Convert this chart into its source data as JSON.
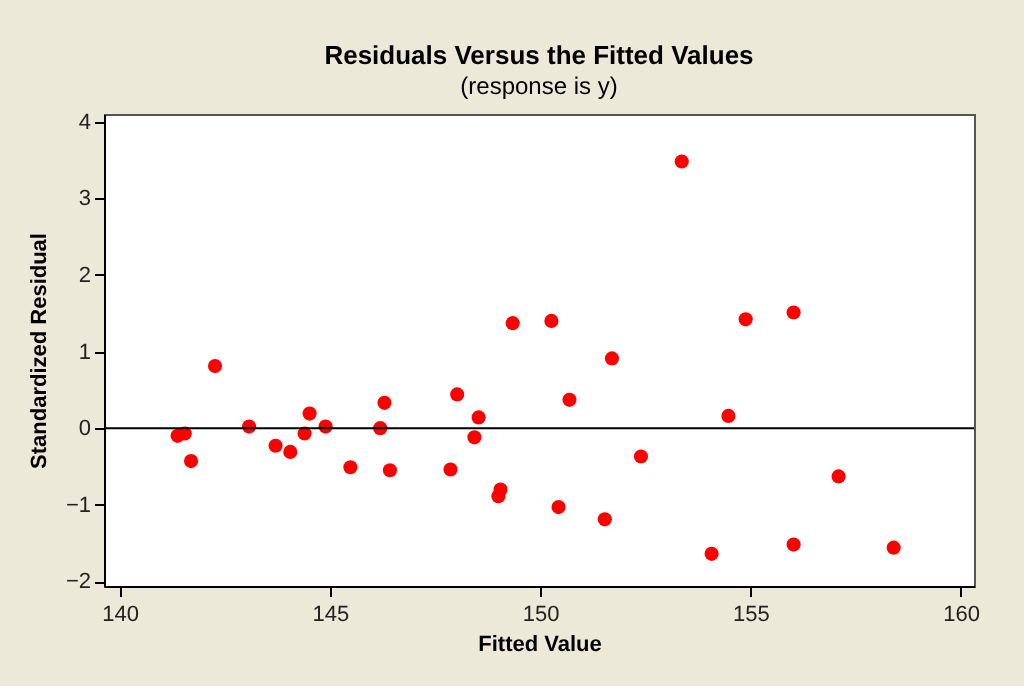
{
  "chart_data": {
    "type": "scatter",
    "title": "Residuals Versus the Fitted Values",
    "subtitle": "(response is y)",
    "xlabel": "Fitted Value",
    "ylabel": "Standardized Residual",
    "x": [
      141.38,
      141.55,
      141.7,
      142.27,
      143.08,
      143.71,
      144.06,
      144.4,
      144.52,
      144.9,
      145.49,
      146.2,
      146.3,
      146.43,
      147.87,
      148.03,
      148.44,
      148.54,
      149.01,
      149.06,
      149.35,
      150.27,
      150.44,
      150.7,
      151.71,
      151.54,
      152.4,
      153.37,
      154.08,
      154.48,
      154.89,
      156.03,
      156.03,
      157.1,
      158.41
    ],
    "series": [
      {
        "color": "#ff0000",
        "values": [
          -0.1,
          -0.07,
          -0.43,
          0.81,
          0.02,
          -0.23,
          -0.31,
          -0.07,
          0.19,
          0.02,
          -0.51,
          0.0,
          0.33,
          -0.55,
          -0.54,
          0.44,
          -0.12,
          0.14,
          -0.89,
          -0.8,
          1.37,
          1.4,
          -1.03,
          0.37,
          0.91,
          -1.19,
          -0.37,
          3.48,
          -1.64,
          0.16,
          1.42,
          1.51,
          -1.52,
          -0.63,
          -1.56
        ]
      }
    ],
    "xlim": [
      139.63,
      160.32
    ],
    "ylim": [
      -2.06,
      4.1
    ],
    "xticks": [
      140,
      145,
      150,
      155,
      160
    ],
    "yticks": [
      -2,
      -1,
      0,
      1,
      2,
      3,
      4
    ],
    "ref_lines": [
      {
        "axis": "y",
        "value": 0,
        "color": "#000000"
      }
    ],
    "grid": false,
    "marker": "circle"
  }
}
